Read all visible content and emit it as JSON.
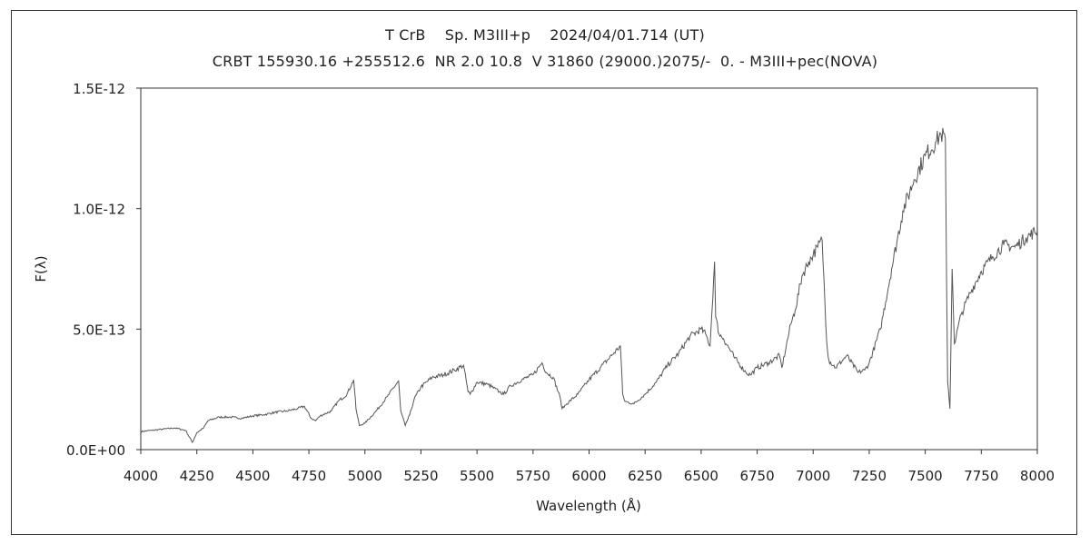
{
  "chart_data": {
    "type": "line",
    "title": "T CrB    Sp. M3III+p    2024/04/01.714 (UT)",
    "subtitle": "CRBT 155930.16 +255512.6  NR 2.0 10.8  V 31860 (29000.)2075/-  0. - M3III+pec(NOVA)",
    "xlabel": "Wavelength (Å)",
    "ylabel": "F(λ)",
    "xlim": [
      4000,
      8000
    ],
    "ylim": [
      0,
      1.5e-12
    ],
    "x_ticks": [
      "4000",
      "4250",
      "4500",
      "4750",
      "5000",
      "5250",
      "5500",
      "5750",
      "6000",
      "6250",
      "6500",
      "6750",
      "7000",
      "7250",
      "7500",
      "7750",
      "8000"
    ],
    "y_ticks": [
      {
        "value": 0,
        "label": "0.0E+00"
      },
      {
        "value": 5e-13,
        "label": "5.0E-13"
      },
      {
        "value": 1e-12,
        "label": "1.0E-12"
      },
      {
        "value": 1.5e-12,
        "label": "1.5E-12"
      }
    ],
    "grid": false,
    "legend": "none",
    "line_color": "#555555",
    "series": [
      {
        "x": [
          4000,
          4050,
          4100,
          4150,
          4200,
          4230,
          4250,
          4280,
          4300,
          4350,
          4400,
          4450,
          4500,
          4550,
          4600,
          4650,
          4700,
          4730,
          4760,
          4780,
          4800,
          4850,
          4880,
          4920,
          4950,
          4960,
          4975,
          5000,
          5050,
          5100,
          5150,
          5160,
          5180,
          5200,
          5220,
          5250,
          5300,
          5350,
          5400,
          5440,
          5460,
          5470,
          5500,
          5550,
          5600,
          5620,
          5650,
          5700,
          5750,
          5790,
          5810,
          5840,
          5870,
          5880,
          5900,
          5950,
          6000,
          6050,
          6100,
          6140,
          6150,
          6160,
          6200,
          6250,
          6300,
          6350,
          6400,
          6450,
          6500,
          6520,
          6540,
          6560,
          6565,
          6580,
          6600,
          6650,
          6700,
          6720,
          6750,
          6800,
          6850,
          6860,
          6880,
          6900,
          6920,
          6950,
          6980,
          7000,
          7020,
          7040,
          7060,
          7070,
          7100,
          7150,
          7200,
          7230,
          7250,
          7300,
          7350,
          7400,
          7450,
          7500,
          7550,
          7570,
          7590,
          7595,
          7600,
          7610,
          7620,
          7630,
          7660,
          7700,
          7750,
          7800,
          7850,
          7900,
          7950,
          8000
        ],
        "y": [
          7.5e-14,
          8e-14,
          8.5e-14,
          9e-14,
          8e-14,
          3e-14,
          7e-14,
          9e-14,
          1.2e-13,
          1.35e-13,
          1.35e-13,
          1.3e-13,
          1.4e-13,
          1.45e-13,
          1.55e-13,
          1.6e-13,
          1.7e-13,
          1.8e-13,
          1.3e-13,
          1.2e-13,
          1.4e-13,
          1.6e-13,
          2e-13,
          2.3e-13,
          2.9e-13,
          1.7e-13,
          1e-13,
          1.1e-13,
          1.6e-13,
          2.2e-13,
          2.85e-13,
          1.6e-13,
          1e-13,
          1.45e-13,
          2.1e-13,
          2.6e-13,
          3e-13,
          3.1e-13,
          3.3e-13,
          3.5e-13,
          2.4e-13,
          2.3e-13,
          2.8e-13,
          2.7e-13,
          2.4e-13,
          2.3e-13,
          2.65e-13,
          2.9e-13,
          3.1e-13,
          3.6e-13,
          3.2e-13,
          3e-13,
          2.2e-13,
          1.7e-13,
          1.9e-13,
          2.3e-13,
          2.9e-13,
          3.4e-13,
          3.9e-13,
          4.3e-13,
          2.3e-13,
          2e-13,
          1.9e-13,
          2.3e-13,
          2.8e-13,
          3.5e-13,
          4e-13,
          4.7e-13,
          5e-13,
          4.8e-13,
          4.3e-13,
          7.8e-13,
          5.5e-13,
          4.8e-13,
          4.6e-13,
          3.8e-13,
          3.2e-13,
          3.1e-13,
          3.4e-13,
          3.6e-13,
          3.9e-13,
          3.4e-13,
          4.3e-13,
          5.2e-13,
          5.8e-13,
          7.2e-13,
          7.8e-13,
          8.1e-13,
          8.4e-13,
          8.7e-13,
          4.5e-13,
          3.7e-13,
          3.4e-13,
          3.9e-13,
          3.2e-13,
          3.3e-13,
          3.6e-13,
          5e-13,
          7.5e-13,
          9.9e-13,
          1.12e-12,
          1.22e-12,
          1.28e-12,
          1.31e-12,
          1.29e-12,
          7e-13,
          2.8e-13,
          1.7e-13,
          7.5e-13,
          4.4e-13,
          5.6e-13,
          6.5e-13,
          7.4e-13,
          8e-13,
          8.5e-13,
          8.4e-13,
          8.8e-13,
          9.1e-13
        ]
      }
    ]
  }
}
